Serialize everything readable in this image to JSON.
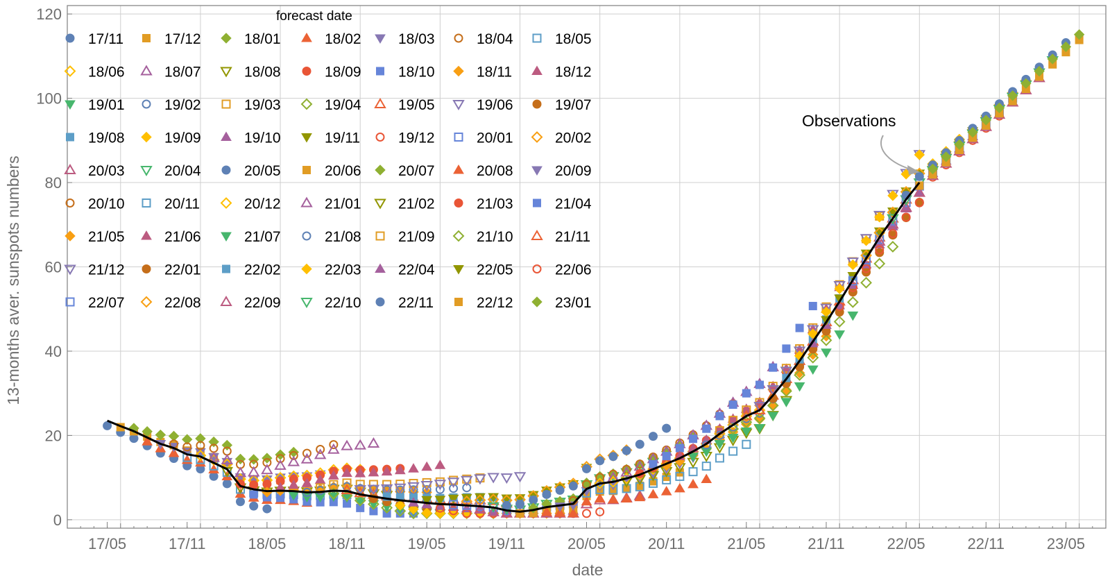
{
  "chart_data": {
    "type": "scatter",
    "title": "",
    "xlabel": "date",
    "ylabel": "13-months aver. sunspots numbers",
    "xlim": [
      "2017-02",
      "2023-08"
    ],
    "ylim": [
      -2,
      122
    ],
    "x_ticks": [
      "17/05",
      "17/11",
      "18/05",
      "18/11",
      "19/05",
      "19/11",
      "20/05",
      "20/11",
      "21/05",
      "21/11",
      "22/05",
      "22/11",
      "23/05"
    ],
    "y_ticks": [
      0,
      20,
      40,
      60,
      80,
      100,
      120
    ],
    "grid": true,
    "legend_title": "forecast date",
    "legend_placement": "top-left",
    "legend_entries": [
      "17/11",
      "17/12",
      "18/01",
      "18/02",
      "18/03",
      "18/04",
      "18/05",
      "18/06",
      "18/07",
      "18/08",
      "18/09",
      "18/10",
      "18/11",
      "18/12",
      "19/01",
      "19/02",
      "19/03",
      "19/04",
      "19/05",
      "19/06",
      "19/07",
      "19/08",
      "19/09",
      "19/10",
      "19/11",
      "19/12",
      "20/01",
      "20/02",
      "20/03",
      "20/04",
      "20/05",
      "20/06",
      "20/07",
      "20/08",
      "20/09",
      "20/10",
      "20/11",
      "20/12",
      "21/01",
      "21/02",
      "21/03",
      "21/04",
      "21/05",
      "21/06",
      "21/07",
      "21/08",
      "21/09",
      "21/10",
      "21/11",
      "21/12",
      "22/01",
      "22/02",
      "22/03",
      "22/04",
      "22/05",
      "22/06",
      "22/07",
      "22/08",
      "22/09",
      "22/10",
      "22/11",
      "22/12",
      "23/01"
    ],
    "marker_palette": [
      "#5e81b5",
      "#e19c24",
      "#8fb032",
      "#eb6235",
      "#8778b3",
      "#c56e1a",
      "#5d9ec7",
      "#ffbf00",
      "#a5609d",
      "#929600",
      "#e95536",
      "#6685d9",
      "#f89f13",
      "#bc5b80",
      "#47b66d"
    ],
    "marker_shapes": [
      "circle",
      "square",
      "diamond",
      "triangle-up",
      "triangle-down",
      "circle-open",
      "square-open",
      "diamond-open",
      "triangle-up-open",
      "triangle-down-open"
    ],
    "observations": {
      "label": "Observations",
      "color": "#000000",
      "x": [
        "2017-05",
        "2017-06",
        "2017-07",
        "2017-08",
        "2017-09",
        "2017-10",
        "2017-11",
        "2017-12",
        "2018-01",
        "2018-02",
        "2018-03",
        "2018-04",
        "2018-05",
        "2018-06",
        "2018-07",
        "2018-08",
        "2018-09",
        "2018-10",
        "2018-11",
        "2018-12",
        "2019-01",
        "2019-02",
        "2019-03",
        "2019-04",
        "2019-05",
        "2019-06",
        "2019-07",
        "2019-08",
        "2019-09",
        "2019-10",
        "2019-11",
        "2019-12",
        "2020-01",
        "2020-02",
        "2020-03",
        "2020-04",
        "2020-05",
        "2020-06",
        "2020-07",
        "2020-08",
        "2020-09",
        "2020-10",
        "2020-11",
        "2020-12",
        "2021-01",
        "2021-02",
        "2021-03",
        "2021-04",
        "2021-05",
        "2021-06",
        "2021-07",
        "2021-08",
        "2021-09",
        "2021-10",
        "2021-11",
        "2021-12",
        "2022-01",
        "2022-02",
        "2022-03",
        "2022-04",
        "2022-05",
        "2022-06"
      ],
      "y": [
        23.5,
        22.2,
        21.0,
        19.5,
        18.0,
        17.0,
        15.5,
        15.0,
        13.5,
        12.0,
        8.0,
        7.2,
        6.8,
        6.9,
        6.8,
        6.5,
        6.6,
        6.9,
        6.8,
        6.0,
        5.5,
        5.0,
        4.6,
        4.3,
        4.0,
        3.7,
        3.6,
        3.4,
        3.2,
        2.9,
        2.2,
        1.9,
        2.3,
        3.0,
        3.4,
        3.8,
        7.3,
        8.6,
        9.0,
        9.8,
        10.7,
        12.0,
        13.3,
        14.6,
        16.2,
        18.0,
        20.4,
        22.5,
        24.6,
        26.0,
        29.5,
        33.4,
        37.7,
        42.3,
        46.9,
        51.8,
        56.9,
        62.0,
        67.0,
        71.5,
        76.0,
        80.0
      ]
    }
  }
}
